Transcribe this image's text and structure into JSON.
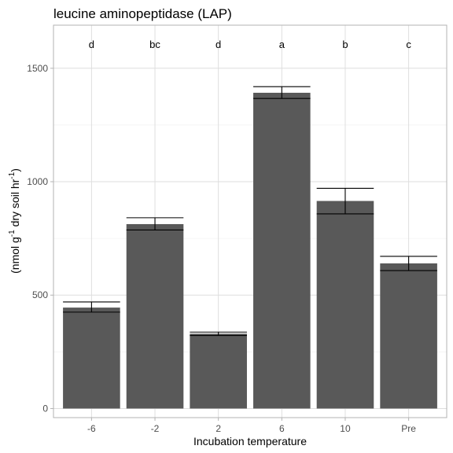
{
  "chart_data": {
    "type": "bar",
    "title": "leucine aminopeptidase (LAP)",
    "xlabel": "Incubation temperature",
    "ylabel": {
      "text_parts": [
        "(nmol g",
        "-1",
        " dry soil hr",
        "-1",
        ")"
      ]
    },
    "categories": [
      "-6",
      "-2",
      "2",
      "6",
      "10",
      "Pre"
    ],
    "values": [
      445,
      813,
      330,
      1392,
      915,
      640
    ],
    "error_lower": [
      425,
      787,
      322,
      1367,
      858,
      608
    ],
    "error_upper": [
      470,
      841,
      337,
      1419,
      971,
      671
    ],
    "significance_letters": [
      "d",
      "bc",
      "d",
      "a",
      "b",
      "c"
    ],
    "ylim": [
      -40,
      1690
    ],
    "yticks": [
      0,
      500,
      1000,
      1500
    ],
    "ytick_labels": [
      "0",
      "500",
      "1000",
      "1500"
    ],
    "grid": true,
    "colors": {
      "bar": "#595959",
      "grid": "#dedede",
      "border": "#b3b3b3"
    }
  }
}
